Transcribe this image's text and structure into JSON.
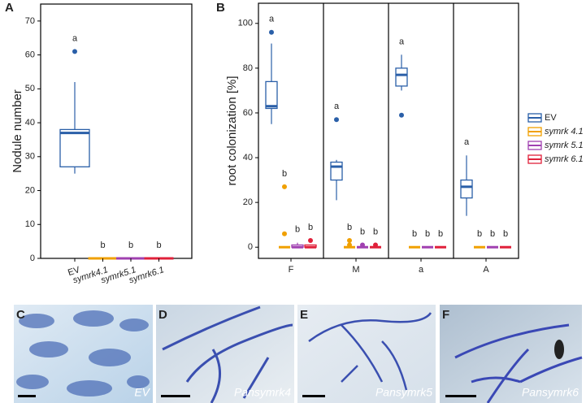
{
  "chart_data": [
    {
      "type": "box",
      "panel": "A",
      "ylabel": "Nodule number",
      "categories": [
        "EV",
        "symrk4.1",
        "symrk5.1",
        "symrk6.1"
      ],
      "colors": [
        "#2a5fa8",
        "#f0a000",
        "#a040b0",
        "#e0203a"
      ],
      "boxes": [
        {
          "whislo": 25,
          "q1": 27,
          "med": 37,
          "q3": 38,
          "whishi": 52,
          "fliers": [
            61
          ]
        },
        {
          "whislo": 0,
          "q1": 0,
          "med": 0,
          "q3": 0,
          "whishi": 0,
          "fliers": []
        },
        {
          "whislo": 0,
          "q1": 0,
          "med": 0,
          "q3": 0,
          "whishi": 0,
          "fliers": []
        },
        {
          "whislo": 0,
          "q1": 0,
          "med": 0,
          "q3": 0,
          "whishi": 0,
          "fliers": []
        }
      ],
      "annotations": [
        "a",
        "b",
        "b",
        "b"
      ],
      "ylim": [
        0,
        75
      ],
      "yticks": [
        0,
        10,
        20,
        30,
        40,
        50,
        60,
        70
      ]
    },
    {
      "type": "box",
      "panel": "B",
      "ylabel": "root colonization [%]",
      "categories": [
        "F",
        "M",
        "a",
        "A"
      ],
      "legend": "right",
      "series": [
        {
          "name": "EV",
          "color": "#2a5fa8",
          "boxes": [
            {
              "whislo": 55,
              "q1": 62,
              "med": 63,
              "q3": 74,
              "whishi": 91,
              "fliers": [
                96
              ]
            },
            {
              "whislo": 21,
              "q1": 30,
              "med": 36,
              "q3": 38,
              "whishi": 39,
              "fliers": [
                57
              ]
            },
            {
              "whislo": 70,
              "q1": 72,
              "med": 77,
              "q3": 80,
              "whishi": 86,
              "fliers": [
                59
              ]
            },
            {
              "whislo": 14,
              "q1": 22,
              "med": 27,
              "q3": 30,
              "whishi": 41,
              "fliers": []
            }
          ]
        },
        {
          "name": "symrk 4.1",
          "color": "#f0a000",
          "boxes": [
            {
              "whislo": 0,
              "q1": 0,
              "med": 0,
              "q3": 0,
              "whishi": 0,
              "fliers": [
                27,
                6
              ]
            },
            {
              "whislo": 0,
              "q1": 0,
              "med": 0,
              "q3": 0,
              "whishi": 0,
              "fliers": [
                3,
                1
              ]
            },
            {
              "whislo": 0,
              "q1": 0,
              "med": 0,
              "q3": 0,
              "whishi": 0,
              "fliers": []
            },
            {
              "whislo": 0,
              "q1": 0,
              "med": 0,
              "q3": 0,
              "whishi": 0,
              "fliers": []
            }
          ]
        },
        {
          "name": "symrk 5.1",
          "color": "#a040b0",
          "boxes": [
            {
              "whislo": 0,
              "q1": 0,
              "med": 0,
              "q3": 1,
              "whishi": 2,
              "fliers": []
            },
            {
              "whislo": 0,
              "q1": 0,
              "med": 0,
              "q3": 0,
              "whishi": 0,
              "fliers": [
                1
              ]
            },
            {
              "whislo": 0,
              "q1": 0,
              "med": 0,
              "q3": 0,
              "whishi": 0,
              "fliers": []
            },
            {
              "whislo": 0,
              "q1": 0,
              "med": 0,
              "q3": 0,
              "whishi": 0,
              "fliers": []
            }
          ]
        },
        {
          "name": "symrk 6.1",
          "color": "#e0203a",
          "boxes": [
            {
              "whislo": 0,
              "q1": 0,
              "med": 0,
              "q3": 1,
              "whishi": 1,
              "fliers": [
                3
              ]
            },
            {
              "whislo": 0,
              "q1": 0,
              "med": 0,
              "q3": 0,
              "whishi": 0,
              "fliers": [
                1
              ]
            },
            {
              "whislo": 0,
              "q1": 0,
              "med": 0,
              "q3": 0,
              "whishi": 0,
              "fliers": []
            },
            {
              "whislo": 0,
              "q1": 0,
              "med": 0,
              "q3": 0,
              "whishi": 0,
              "fliers": []
            }
          ]
        }
      ],
      "annotations": [
        [
          "a",
          "b",
          "b",
          "b"
        ],
        [
          "a",
          "b",
          "b",
          "b"
        ],
        [
          "a",
          "b",
          "b",
          "b"
        ],
        [
          "a",
          "b",
          "b",
          "b"
        ]
      ],
      "ylim": [
        -5,
        109
      ],
      "yticks": [
        0,
        20,
        40,
        60,
        80,
        100
      ]
    }
  ],
  "micrographs": [
    {
      "panel": "C",
      "label": "EV"
    },
    {
      "panel": "D",
      "label": "Pansymrk4"
    },
    {
      "panel": "E",
      "label": "Pansymrk5"
    },
    {
      "panel": "F",
      "label": "Pansymrk6"
    }
  ]
}
